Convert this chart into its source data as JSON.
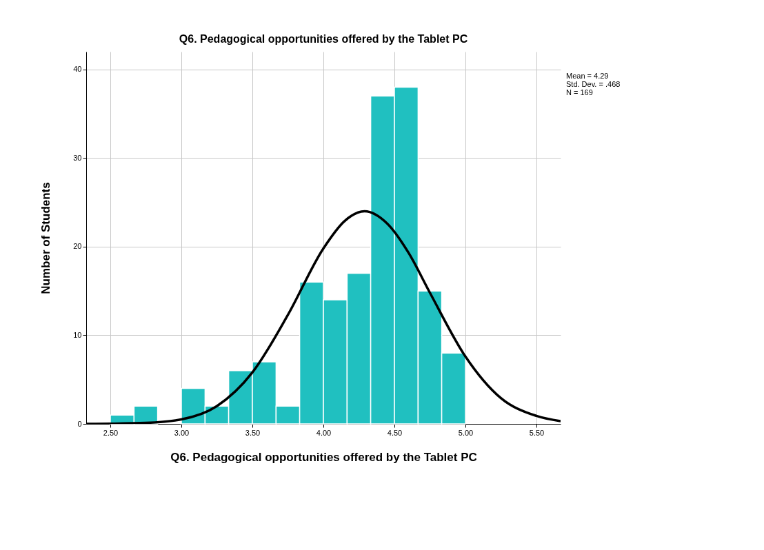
{
  "chart_data": {
    "type": "histogram",
    "title": "Q6. Pedagogical opportunities offered by the Tablet PC",
    "xlabel": "Q6. Pedagogical opportunities offered by the Tablet PC",
    "ylabel": "Number of Students",
    "bins": [
      2.5,
      2.667,
      2.833,
      3.0,
      3.167,
      3.333,
      3.5,
      3.667,
      3.833,
      4.0,
      4.167,
      4.333,
      4.5,
      4.667,
      4.833,
      5.0
    ],
    "series": [
      {
        "color": "#20c0c0",
        "values": [
          1,
          2,
          0,
          4,
          2,
          6,
          7,
          2,
          16,
          14,
          17,
          37,
          38,
          15,
          8
        ]
      },
      {
        "type": "line",
        "color": "#000000",
        "x": [
          2.33,
          2.5,
          2.75,
          3.0,
          3.25,
          3.5,
          3.75,
          4.0,
          4.15,
          4.29,
          4.45,
          4.6,
          4.75,
          5.0,
          5.25,
          5.5,
          5.67
        ],
        "values": [
          0.0,
          0.02,
          0.11,
          0.5,
          2.0,
          5.8,
          12.3,
          19.8,
          22.9,
          24.0,
          22.6,
          19.3,
          14.8,
          7.6,
          2.9,
          0.9,
          0.3
        ]
      }
    ],
    "xlim": [
      2.33,
      5.67
    ],
    "ylim": [
      0,
      42
    ],
    "xticks": [
      {
        "value": 2.5,
        "label": "2.50"
      },
      {
        "value": 3.0,
        "label": "3.00"
      },
      {
        "value": 3.5,
        "label": "3.50"
      },
      {
        "value": 4.0,
        "label": "4.00"
      },
      {
        "value": 4.5,
        "label": "4.50"
      },
      {
        "value": 5.0,
        "label": "5.00"
      },
      {
        "value": 5.5,
        "label": "5.50"
      }
    ],
    "yticks": [
      0,
      10,
      20,
      30,
      40
    ],
    "grid": true,
    "line_style": "solid",
    "marker": "none",
    "annotations": [
      "Mean = 4.29",
      "Std. Dev. = .468",
      "N = 169"
    ]
  }
}
